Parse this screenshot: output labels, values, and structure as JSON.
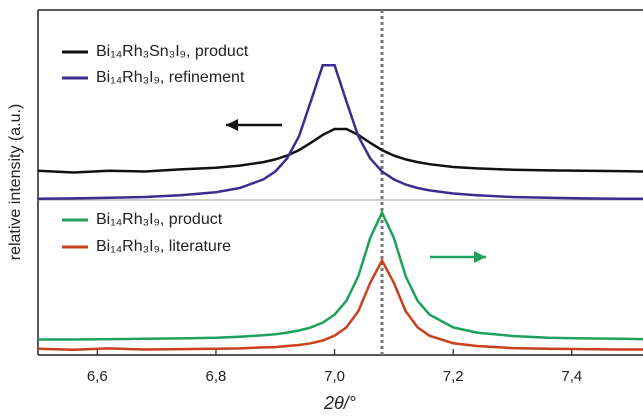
{
  "chart_data": {
    "type": "line",
    "x_label": "2θ/°",
    "y_label": "relative intensity (a.u.)",
    "x": [
      6.5,
      6.56,
      6.62,
      6.68,
      6.74,
      6.8,
      6.84,
      6.88,
      6.9,
      6.92,
      6.94,
      6.96,
      6.98,
      7.0,
      7.02,
      7.04,
      7.06,
      7.08,
      7.1,
      7.12,
      7.14,
      7.16,
      7.2,
      7.24,
      7.3,
      7.36,
      7.42,
      7.48,
      7.52
    ],
    "series": [
      {
        "name": "Bi₁₄Rh₃Sn₃I₉, product",
        "color": "#111111",
        "values": [
          53.4,
          52.9,
          53.4,
          53.2,
          53.8,
          54.3,
          54.9,
          55.9,
          56.7,
          57.8,
          59.4,
          61.5,
          63.8,
          65.5,
          65.5,
          63.8,
          61.5,
          59.4,
          57.8,
          56.7,
          55.9,
          55.3,
          54.5,
          54.1,
          53.7,
          53.5,
          53.4,
          53.3,
          53.2
        ]
      },
      {
        "name": "Bi₁₄Rh₃I₉, refinement",
        "color": "#3b2d8f",
        "values": [
          45.3,
          45.4,
          45.6,
          45.8,
          46.3,
          47.2,
          48.4,
          50.9,
          53.2,
          57.0,
          63.4,
          73.5,
          84.0,
          84.0,
          73.5,
          63.4,
          57.0,
          53.2,
          50.9,
          49.4,
          48.4,
          47.7,
          46.8,
          46.3,
          45.8,
          45.6,
          45.4,
          45.3,
          45.3
        ]
      },
      {
        "name": "Bi₁₄Rh₃I₉, product",
        "color": "#1ea15a",
        "values": [
          4.5,
          4.5,
          4.6,
          4.7,
          4.8,
          5.0,
          5.3,
          5.7,
          6.0,
          6.5,
          7.1,
          8.0,
          9.4,
          11.7,
          15.7,
          22.8,
          33.9,
          41.3,
          33.9,
          22.8,
          15.7,
          11.7,
          8.0,
          6.5,
          5.5,
          5.0,
          4.8,
          4.7,
          4.6
        ]
      },
      {
        "name": "Bi₁₄Rh₃I₉, literature",
        "color": "#c8401c",
        "values": [
          1.8,
          1.5,
          1.9,
          1.6,
          1.7,
          1.8,
          1.9,
          2.2,
          2.3,
          2.6,
          2.9,
          3.4,
          4.2,
          5.6,
          8.0,
          12.7,
          20.9,
          27.4,
          20.9,
          12.7,
          8.0,
          5.6,
          3.4,
          2.6,
          2.0,
          1.8,
          1.7,
          1.6,
          1.6
        ]
      }
    ],
    "xlim": [
      6.5,
      7.52
    ],
    "xticks": [
      {
        "value": 6.6,
        "label": "6,6"
      },
      {
        "value": 6.8,
        "label": "6,8"
      },
      {
        "value": 7.0,
        "label": "7,0"
      },
      {
        "value": 7.2,
        "label": "7,2"
      },
      {
        "value": 7.4,
        "label": "7,4"
      }
    ],
    "ylim": [
      0,
      100
    ],
    "reference_line": 7.08,
    "grid": false
  }
}
